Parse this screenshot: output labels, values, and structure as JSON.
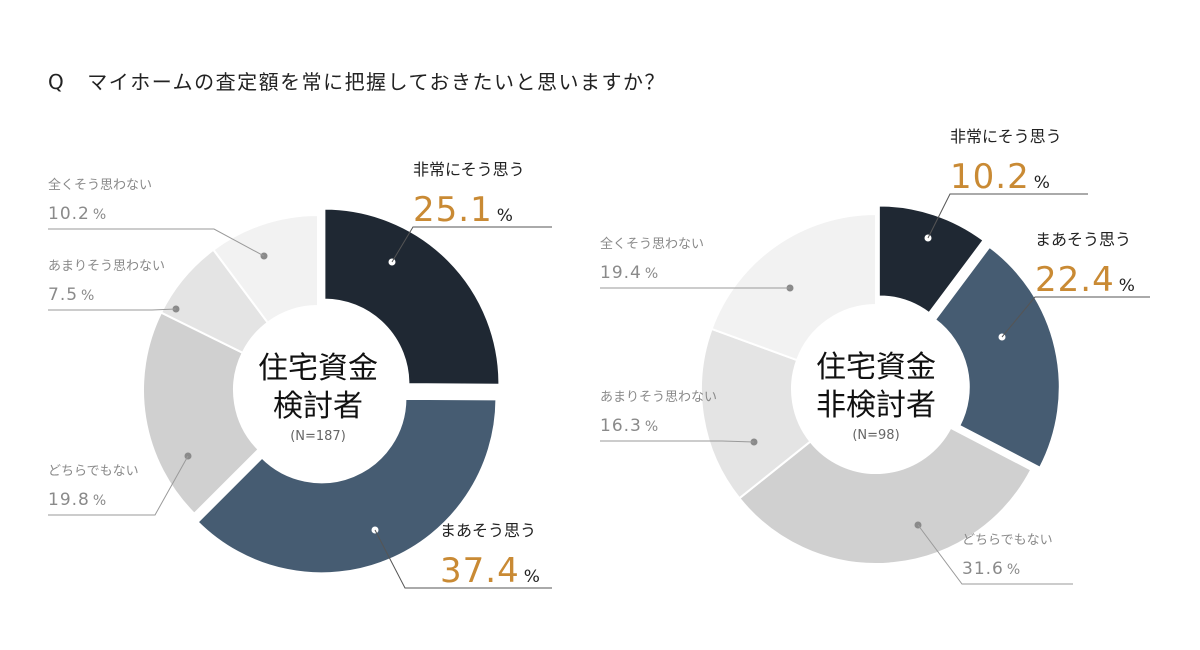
{
  "question": {
    "marker": "Q",
    "text": "マイホームの査定額を常に把握しておきたいと思いますか？"
  },
  "colors": {
    "dark": "#1f2833",
    "slate": "#465c72",
    "mid_gray": "#d0d0d0",
    "light_gray": "#e4e4e4",
    "lightest_gray": "#f2f2f2",
    "accent_orange": "#c98a34",
    "label_gray": "#8a8a8a",
    "label_dark": "#222222",
    "leader_line": "#555555"
  },
  "chart_data": [
    {
      "type": "pie",
      "variant": "donut",
      "center_label": [
        "住宅資金",
        "検討者"
      ],
      "n_label": "(N=187)",
      "unit": "%",
      "series": [
        {
          "label": "非常にそう思う",
          "value": 25.1,
          "value_text": "25.1",
          "color": "#1f2833",
          "exploded": true,
          "emphasis": true
        },
        {
          "label": "まあそう思う",
          "value": 37.4,
          "value_text": "37.4",
          "color": "#465c72",
          "exploded": true,
          "emphasis": true
        },
        {
          "label": "どちらでもない",
          "value": 19.8,
          "value_text": "19.8",
          "color": "#d0d0d0",
          "exploded": false,
          "emphasis": false
        },
        {
          "label": "あまりそう思わない",
          "value": 7.5,
          "value_text": "7.5",
          "color": "#e4e4e4",
          "exploded": false,
          "emphasis": false
        },
        {
          "label": "全くそう思わない",
          "value": 10.2,
          "value_text": "10.2",
          "color": "#f2f2f2",
          "exploded": false,
          "emphasis": false
        }
      ]
    },
    {
      "type": "pie",
      "variant": "donut",
      "center_label": [
        "住宅資金",
        "非検討者"
      ],
      "n_label": "(N=98)",
      "unit": "%",
      "series": [
        {
          "label": "非常にそう思う",
          "value": 10.2,
          "value_text": "10.2",
          "color": "#1f2833",
          "exploded": true,
          "emphasis": true
        },
        {
          "label": "まあそう思う",
          "value": 22.4,
          "value_text": "22.4",
          "color": "#465c72",
          "exploded": true,
          "emphasis": true
        },
        {
          "label": "どちらでもない",
          "value": 31.6,
          "value_text": "31.6",
          "color": "#d0d0d0",
          "exploded": false,
          "emphasis": false
        },
        {
          "label": "あまりそう思わない",
          "value": 16.3,
          "value_text": "16.3",
          "color": "#e4e4e4",
          "exploded": false,
          "emphasis": false
        },
        {
          "label": "全くそう思わない",
          "value": 19.4,
          "value_text": "19.4",
          "color": "#f2f2f2",
          "exploded": false,
          "emphasis": false
        }
      ]
    }
  ]
}
